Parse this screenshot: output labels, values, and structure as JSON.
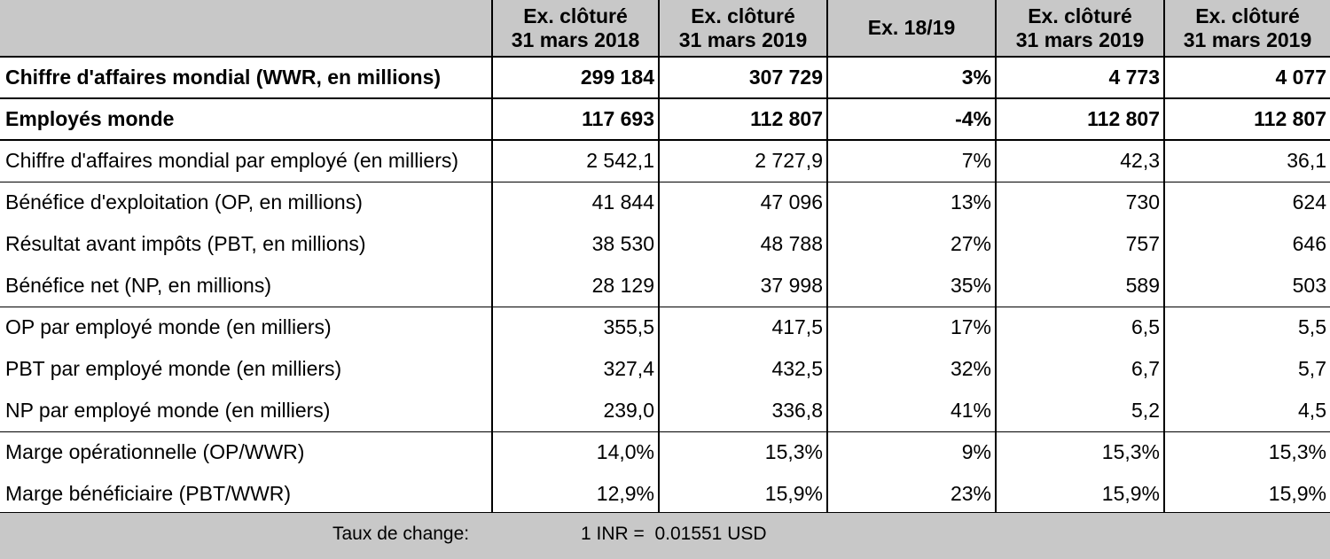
{
  "header": {
    "columns": [
      {
        "line1": "Ex. clôturé",
        "line2": "31 mars 2018"
      },
      {
        "line1": "Ex. clôturé",
        "line2": "31 mars 2019"
      },
      {
        "line1": "Ex. 18/19",
        "line2": ""
      },
      {
        "line1": "Ex. clôturé",
        "line2": "31 mars 2019"
      },
      {
        "line1": "Ex. clôturé",
        "line2": "31 mars 2019"
      }
    ]
  },
  "rows": [
    {
      "label": "Chiffre d'affaires mondial (WWR, en millions)",
      "values": [
        "299 184",
        "307 729",
        "3%",
        "4 773",
        "4 077"
      ]
    },
    {
      "label": "Employés monde",
      "values": [
        "117 693",
        "112 807",
        "-4%",
        "112 807",
        "112 807"
      ]
    },
    {
      "label": "Chiffre d'affaires mondial par employé (en milliers)",
      "values": [
        "2 542,1",
        "2 727,9",
        "7%",
        "42,3",
        "36,1"
      ]
    },
    {
      "label": "Bénéfice d'exploitation (OP, en millions)",
      "values": [
        "41 844",
        "47 096",
        "13%",
        "730",
        "624"
      ]
    },
    {
      "label": "Résultat avant impôts (PBT, en millions)",
      "values": [
        "38 530",
        "48 788",
        "27%",
        "757",
        "646"
      ]
    },
    {
      "label": "Bénéfice net (NP, en millions)",
      "values": [
        "28 129",
        "37 998",
        "35%",
        "589",
        "503"
      ]
    },
    {
      "label": "OP par employé monde (en milliers)",
      "values": [
        "355,5",
        "417,5",
        "17%",
        "6,5",
        "5,5"
      ]
    },
    {
      "label": "PBT par employé monde (en milliers)",
      "values": [
        "327,4",
        "432,5",
        "32%",
        "6,7",
        "5,7"
      ]
    },
    {
      "label": "NP par employé monde (en milliers)",
      "values": [
        "239,0",
        "336,8",
        "41%",
        "5,2",
        "4,5"
      ]
    },
    {
      "label": "Marge opérationnelle (OP/WWR)",
      "values": [
        "14,0%",
        "15,3%",
        "9%",
        "15,3%",
        "15,3%"
      ]
    },
    {
      "label": "Marge bénéficiaire (PBT/WWR)",
      "values": [
        "12,9%",
        "15,9%",
        "23%",
        "15,9%",
        "15,9%"
      ]
    }
  ],
  "footer": {
    "label": "Taux de change:",
    "value": "1 INR =  0.01551 USD"
  }
}
